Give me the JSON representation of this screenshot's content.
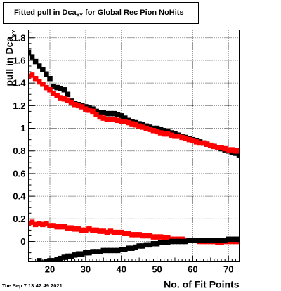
{
  "header": {
    "title_main": "Fitted pull in Dca",
    "title_sub": "XY",
    "title_rest": " for Global Rec Pion NoHits"
  },
  "footer": {
    "timestamp": "Tue Sep  7 13:42:49 2021"
  },
  "chart_data": {
    "type": "scatter",
    "xlabel": "No. of Fit Points",
    "ylabel": "pull in Dca",
    "ylabel_sub": "XY",
    "xlim": [
      14,
      73
    ],
    "ylim": [
      -0.18,
      1.87
    ],
    "x_ticks": [
      20,
      30,
      40,
      50,
      60,
      70
    ],
    "y_ticks": [
      0,
      0.2,
      0.4,
      0.6,
      0.8,
      1,
      1.2,
      1.4,
      1.6,
      1.8
    ],
    "x_tick_labels": [
      "20",
      "30",
      "40",
      "50",
      "60",
      "70"
    ],
    "y_tick_labels": [
      "0",
      "0.2",
      "0.4",
      "0.6",
      "0.8",
      "1",
      "1.2",
      "1.4",
      "1.6",
      "1.8"
    ],
    "grid": true,
    "series": [
      {
        "color": "#000000",
        "x": [
          14,
          15,
          16,
          17,
          18,
          19,
          20,
          21,
          22,
          23,
          24,
          25,
          26,
          27,
          28,
          29,
          30,
          31,
          32,
          33,
          34,
          35,
          36,
          37,
          38,
          39,
          40,
          41,
          42,
          43,
          44,
          45,
          46,
          47,
          48,
          49,
          50,
          51,
          52,
          53,
          54,
          55,
          56,
          57,
          58,
          59,
          60,
          61,
          62,
          63,
          64,
          65,
          66,
          67,
          68,
          69,
          70,
          71,
          72,
          73
        ],
        "y": [
          1.67,
          1.63,
          1.59,
          1.55,
          1.52,
          1.48,
          1.44,
          1.37,
          1.36,
          1.35,
          1.34,
          1.3,
          1.24,
          1.22,
          1.21,
          1.2,
          1.19,
          1.18,
          1.17,
          1.15,
          1.14,
          1.14,
          1.13,
          1.13,
          1.13,
          1.12,
          1.11,
          1.09,
          1.07,
          1.06,
          1.05,
          1.04,
          1.03,
          1.02,
          1.01,
          1.0,
          1.0,
          0.99,
          0.98,
          0.97,
          0.96,
          0.95,
          0.94,
          0.93,
          0.92,
          0.91,
          0.9,
          0.89,
          0.88,
          0.87,
          0.86,
          0.85,
          0.84,
          0.83,
          0.82,
          0.81,
          0.8,
          0.79,
          0.78,
          0.76
        ]
      },
      {
        "color": "#ff0000",
        "x": [
          14,
          15,
          16,
          17,
          18,
          19,
          20,
          21,
          22,
          23,
          24,
          25,
          26,
          27,
          28,
          29,
          30,
          31,
          32,
          33,
          34,
          35,
          36,
          37,
          38,
          39,
          40,
          41,
          42,
          43,
          44,
          45,
          46,
          47,
          48,
          49,
          50,
          51,
          52,
          53,
          54,
          55,
          56,
          57,
          58,
          59,
          60,
          61,
          62,
          63,
          64,
          65,
          66,
          67,
          68,
          69,
          70,
          71,
          72,
          73
        ],
        "y": [
          1.46,
          1.47,
          1.44,
          1.41,
          1.39,
          1.36,
          1.34,
          1.31,
          1.29,
          1.27,
          1.26,
          1.25,
          1.23,
          1.21,
          1.2,
          1.19,
          1.17,
          1.16,
          1.15,
          1.12,
          1.1,
          1.09,
          1.08,
          1.08,
          1.08,
          1.07,
          1.06,
          1.06,
          1.05,
          1.04,
          1.03,
          1.02,
          1.01,
          1.0,
          0.99,
          0.98,
          0.97,
          0.96,
          0.95,
          0.95,
          0.94,
          0.93,
          0.93,
          0.92,
          0.91,
          0.9,
          0.89,
          0.88,
          0.87,
          0.87,
          0.86,
          0.85,
          0.84,
          0.83,
          0.83,
          0.82,
          0.81,
          0.81,
          0.8,
          0.8
        ]
      },
      {
        "color": "#ff0000",
        "x": [
          14,
          15,
          16,
          17,
          18,
          19,
          20,
          21,
          22,
          23,
          24,
          25,
          26,
          27,
          28,
          29,
          30,
          31,
          32,
          33,
          34,
          35,
          36,
          37,
          38,
          39,
          40,
          41,
          42,
          43,
          44,
          45,
          46,
          47,
          48,
          49,
          50,
          51,
          52,
          53,
          54,
          55,
          56,
          57,
          58,
          59,
          60,
          61,
          62,
          63,
          64,
          65,
          66,
          67,
          68,
          69,
          70,
          71,
          72,
          73
        ],
        "y": [
          0.16,
          0.17,
          0.15,
          0.16,
          0.15,
          0.16,
          0.14,
          0.14,
          0.13,
          0.13,
          0.13,
          0.12,
          0.12,
          0.11,
          0.11,
          0.1,
          0.1,
          0.11,
          0.1,
          0.1,
          0.09,
          0.09,
          0.08,
          0.09,
          0.08,
          0.08,
          0.08,
          0.07,
          0.07,
          0.06,
          0.06,
          0.06,
          0.05,
          0.05,
          0.05,
          0.04,
          0.04,
          0.04,
          0.03,
          0.03,
          0.02,
          0.02,
          0.02,
          0.02,
          0.01,
          0.01,
          0.01,
          0.01,
          0.0,
          0.0,
          0.0,
          0.0,
          0.0,
          -0.01,
          -0.01,
          0.0,
          0.0,
          0.0,
          0.0,
          0.0
        ]
      },
      {
        "color": "#000000",
        "x": [
          17,
          18,
          19,
          20,
          21,
          22,
          23,
          24,
          25,
          26,
          27,
          28,
          29,
          30,
          31,
          32,
          33,
          34,
          35,
          36,
          37,
          38,
          39,
          40,
          41,
          42,
          43,
          44,
          45,
          46,
          47,
          48,
          49,
          50,
          51,
          52,
          53,
          54,
          55,
          56,
          57,
          58,
          59,
          60,
          61,
          62,
          63,
          64,
          65,
          66,
          67,
          68,
          69,
          70,
          71,
          72,
          73
        ],
        "y": [
          -0.17,
          -0.19,
          -0.18,
          -0.17,
          -0.17,
          -0.16,
          -0.15,
          -0.14,
          -0.13,
          -0.13,
          -0.12,
          -0.11,
          -0.11,
          -0.1,
          -0.1,
          -0.09,
          -0.09,
          -0.09,
          -0.08,
          -0.08,
          -0.08,
          -0.08,
          -0.08,
          -0.07,
          -0.07,
          -0.06,
          -0.06,
          -0.05,
          -0.04,
          -0.04,
          -0.03,
          -0.03,
          -0.02,
          -0.02,
          -0.01,
          -0.01,
          -0.01,
          0.0,
          0.0,
          0.0,
          0.0,
          0.0,
          0.01,
          0.01,
          0.01,
          0.01,
          0.01,
          0.01,
          0.01,
          0.01,
          0.01,
          0.01,
          0.01,
          0.02,
          0.02,
          0.02,
          0.02
        ]
      }
    ]
  }
}
